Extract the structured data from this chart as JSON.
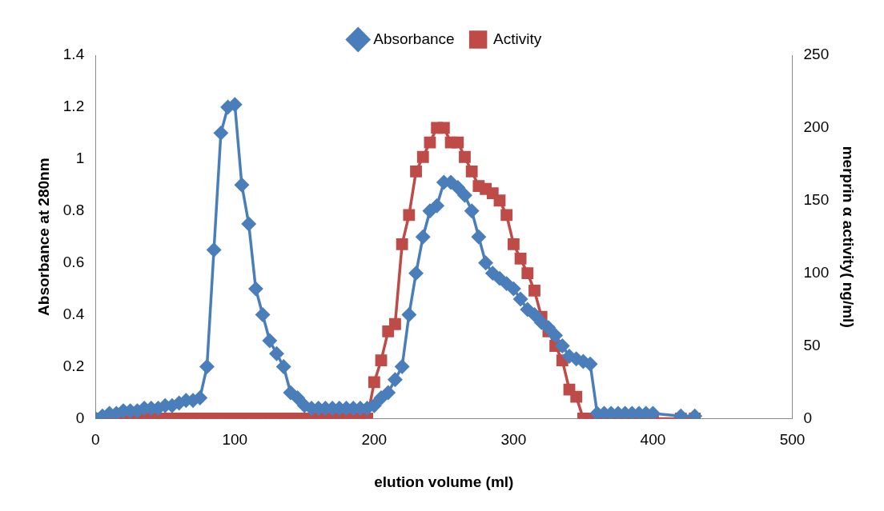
{
  "chart_data": {
    "type": "line",
    "xlabel": "elution volume (ml)",
    "ylabel": "Absorbance at 280nm",
    "y2label": "merprin α activity( ng/ml)",
    "x": [
      0,
      5,
      10,
      15,
      20,
      25,
      30,
      35,
      40,
      45,
      50,
      55,
      60,
      65,
      70,
      75,
      80,
      85,
      90,
      95,
      100,
      105,
      110,
      115,
      120,
      125,
      130,
      135,
      140,
      145,
      150,
      155,
      160,
      165,
      170,
      175,
      180,
      185,
      190,
      195,
      200,
      205,
      210,
      215,
      220,
      225,
      230,
      235,
      240,
      245,
      250,
      255,
      260,
      265,
      270,
      275,
      280,
      285,
      290,
      295,
      300,
      305,
      310,
      315,
      320,
      325,
      330,
      335,
      340,
      345,
      350,
      355,
      360,
      365,
      370,
      375,
      380,
      385,
      390,
      395,
      400,
      420,
      430
    ],
    "series": [
      {
        "name": "Absorbance",
        "color": "#4a7ebb",
        "marker": "diamond",
        "values": [
          0,
          0.01,
          0.02,
          0.02,
          0.03,
          0.03,
          0.03,
          0.04,
          0.04,
          0.04,
          0.05,
          0.05,
          0.06,
          0.07,
          0.07,
          0.08,
          0.2,
          0.65,
          1.1,
          1.2,
          1.21,
          0.9,
          0.75,
          0.5,
          0.4,
          0.3,
          0.25,
          0.2,
          0.1,
          0.08,
          0.05,
          0.04,
          0.04,
          0.04,
          0.04,
          0.04,
          0.04,
          0.04,
          0.04,
          0.04,
          0.05,
          0.08,
          0.1,
          0.15,
          0.2,
          0.4,
          0.56,
          0.7,
          0.8,
          0.82,
          0.91,
          0.91,
          0.89,
          0.86,
          0.8,
          0.7,
          0.6,
          0.56,
          0.54,
          0.52,
          0.5,
          0.46,
          0.42,
          0.4,
          0.37,
          0.35,
          0.32,
          0.28,
          0.24,
          0.23,
          0.22,
          0.21,
          0.02,
          0.02,
          0.02,
          0.02,
          0.02,
          0.02,
          0.02,
          0.02,
          0.02,
          0.01,
          0.01
        ]
      },
      {
        "name": "Activity",
        "color": "#be4b48",
        "marker": "square",
        "axis": "y2",
        "values": [
          0,
          0,
          0,
          0,
          0,
          0,
          0,
          0,
          0,
          0,
          0,
          0,
          0,
          0,
          0,
          0,
          0,
          0,
          0,
          0,
          0,
          0,
          0,
          0,
          0,
          0,
          0,
          0,
          0,
          0,
          0,
          0,
          0,
          0,
          0,
          0,
          0,
          0,
          0,
          0,
          25,
          40,
          60,
          65,
          120,
          140,
          170,
          180,
          190,
          200,
          200,
          190,
          190,
          180,
          170,
          160,
          158,
          155,
          150,
          140,
          120,
          110,
          100,
          88,
          70,
          60,
          50,
          40,
          20,
          15,
          0,
          0,
          0,
          0,
          0,
          0,
          0,
          0,
          0,
          0,
          0,
          0,
          0
        ]
      }
    ],
    "xlim": [
      0,
      500
    ],
    "xticks": [
      0,
      100,
      200,
      300,
      400,
      500
    ],
    "ylim": [
      0,
      1.4
    ],
    "yticks": [
      0,
      0.2,
      0.4,
      0.6,
      0.8,
      1,
      1.2,
      1.4
    ],
    "y2lim": [
      0,
      250
    ],
    "y2ticks": [
      0,
      50,
      100,
      150,
      200,
      250
    ],
    "grid": false,
    "legend": "top",
    "line_style": "solid"
  }
}
